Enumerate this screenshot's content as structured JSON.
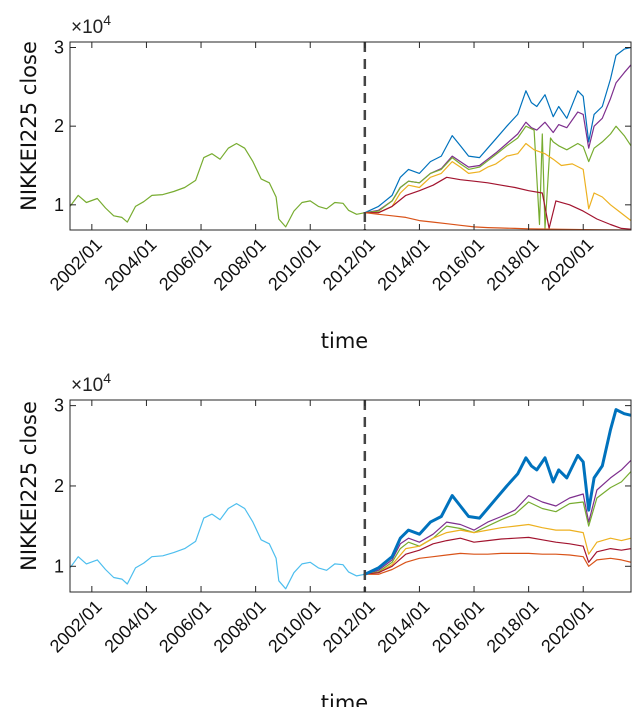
{
  "chart_data": [
    {
      "type": "line",
      "title": "",
      "xlabel": "time",
      "ylabel": "NIKKEI225 close",
      "y_exponent_label": "×10",
      "y_exponent_power": "4",
      "xlim": [
        2001.2,
        2021.75
      ],
      "ylim": [
        0.68,
        3.07
      ],
      "y_scale_note": "values in units of 10^4",
      "x_ticks": [
        2002,
        2004,
        2006,
        2008,
        2010,
        2012,
        2014,
        2016,
        2018,
        2020
      ],
      "x_tick_labels": [
        "2002/01",
        "2004/01",
        "2006/01",
        "2008/01",
        "2010/01",
        "2012/01",
        "2014/01",
        "2016/01",
        "2018/01",
        "2020/01"
      ],
      "y_ticks": [
        1,
        2,
        3
      ],
      "y_tick_labels": [
        "1",
        "2",
        "3"
      ],
      "split_x": 2012.0,
      "grid": false,
      "history": {
        "color": "#77AC30",
        "x": [
          2001.2,
          2001.5,
          2001.8,
          2002.2,
          2002.5,
          2002.8,
          2003.1,
          2003.3,
          2003.6,
          2003.9,
          2004.2,
          2004.6,
          2005.0,
          2005.4,
          2005.8,
          2006.1,
          2006.4,
          2006.7,
          2007.0,
          2007.3,
          2007.6,
          2007.9,
          2008.2,
          2008.5,
          2008.75,
          2008.85,
          2009.1,
          2009.4,
          2009.7,
          2010.0,
          2010.3,
          2010.6,
          2010.9,
          2011.2,
          2011.4,
          2011.7,
          2012.0
        ],
        "y": [
          0.98,
          1.12,
          1.03,
          1.08,
          0.96,
          0.86,
          0.84,
          0.78,
          0.98,
          1.04,
          1.12,
          1.13,
          1.17,
          1.22,
          1.31,
          1.6,
          1.65,
          1.58,
          1.72,
          1.78,
          1.72,
          1.55,
          1.33,
          1.28,
          1.1,
          0.82,
          0.72,
          0.92,
          1.03,
          1.05,
          0.98,
          0.95,
          1.03,
          1.02,
          0.93,
          0.88,
          0.9
        ]
      },
      "series": [
        {
          "color": "#0072BD",
          "width": 1.2,
          "x": [
            2012.0,
            2012.5,
            2013.0,
            2013.3,
            2013.6,
            2014.0,
            2014.4,
            2014.8,
            2015.2,
            2015.5,
            2015.8,
            2016.2,
            2016.5,
            2016.8,
            2017.2,
            2017.6,
            2017.9,
            2018.1,
            2018.3,
            2018.6,
            2018.9,
            2019.1,
            2019.4,
            2019.8,
            2020.0,
            2020.2,
            2020.4,
            2020.7,
            2021.0,
            2021.2,
            2021.5,
            2021.75
          ],
          "y": [
            0.9,
            0.98,
            1.12,
            1.35,
            1.45,
            1.4,
            1.55,
            1.62,
            1.88,
            1.75,
            1.62,
            1.6,
            1.72,
            1.84,
            2.0,
            2.15,
            2.45,
            2.3,
            2.25,
            2.4,
            2.12,
            2.25,
            2.1,
            2.45,
            2.38,
            1.8,
            2.15,
            2.25,
            2.6,
            2.9,
            2.98,
            3.0
          ]
        },
        {
          "color": "#7E2F8E",
          "width": 1.2,
          "x": [
            2012.0,
            2012.5,
            2013.0,
            2013.3,
            2013.6,
            2014.0,
            2014.4,
            2014.8,
            2015.2,
            2015.5,
            2015.8,
            2016.2,
            2016.5,
            2016.8,
            2017.2,
            2017.6,
            2017.9,
            2018.1,
            2018.3,
            2018.6,
            2018.9,
            2019.1,
            2019.4,
            2019.8,
            2020.0,
            2020.2,
            2020.4,
            2020.7,
            2021.0,
            2021.2,
            2021.5,
            2021.75
          ],
          "y": [
            0.9,
            0.93,
            1.05,
            1.22,
            1.3,
            1.28,
            1.4,
            1.46,
            1.62,
            1.55,
            1.48,
            1.5,
            1.58,
            1.66,
            1.78,
            1.9,
            2.05,
            1.98,
            1.95,
            2.05,
            1.92,
            2.02,
            1.98,
            2.18,
            2.15,
            1.72,
            2.0,
            2.1,
            2.35,
            2.55,
            2.68,
            2.78
          ]
        },
        {
          "color": "#77AC30",
          "width": 1.2,
          "x": [
            2012.0,
            2012.5,
            2013.0,
            2013.3,
            2013.6,
            2014.0,
            2014.4,
            2014.8,
            2015.2,
            2015.5,
            2015.8,
            2016.2,
            2016.5,
            2016.8,
            2017.2,
            2017.6,
            2017.9,
            2018.2,
            2018.4,
            2018.5,
            2018.6,
            2018.8,
            2018.9,
            2019.1,
            2019.4,
            2019.8,
            2020.0,
            2020.2,
            2020.4,
            2020.7,
            2021.0,
            2021.2,
            2021.5,
            2021.75
          ],
          "y": [
            0.9,
            0.92,
            1.05,
            1.22,
            1.3,
            1.28,
            1.4,
            1.45,
            1.6,
            1.52,
            1.45,
            1.48,
            1.56,
            1.64,
            1.75,
            1.85,
            2.0,
            1.95,
            0.75,
            1.9,
            0.7,
            1.85,
            1.8,
            1.75,
            1.7,
            1.78,
            1.74,
            1.55,
            1.72,
            1.8,
            1.9,
            2.0,
            1.88,
            1.75
          ]
        },
        {
          "color": "#EDB120",
          "width": 1.2,
          "x": [
            2012.0,
            2012.5,
            2013.0,
            2013.3,
            2013.6,
            2014.0,
            2014.4,
            2014.8,
            2015.2,
            2015.5,
            2015.8,
            2016.2,
            2016.5,
            2016.8,
            2017.2,
            2017.6,
            2017.9,
            2018.2,
            2018.6,
            2018.9,
            2019.2,
            2019.6,
            2020.0,
            2020.2,
            2020.4,
            2020.7,
            2021.0,
            2021.3,
            2021.75
          ],
          "y": [
            0.9,
            0.9,
            0.98,
            1.15,
            1.25,
            1.22,
            1.35,
            1.4,
            1.55,
            1.48,
            1.4,
            1.42,
            1.48,
            1.52,
            1.62,
            1.65,
            1.78,
            1.7,
            1.65,
            1.58,
            1.5,
            1.52,
            1.45,
            0.95,
            1.15,
            1.1,
            1.0,
            0.92,
            0.8
          ]
        },
        {
          "color": "#A2142F",
          "width": 1.2,
          "x": [
            2012.0,
            2012.5,
            2013.0,
            2013.5,
            2014.0,
            2014.5,
            2015.0,
            2015.5,
            2016.0,
            2016.5,
            2017.0,
            2017.5,
            2018.0,
            2018.5,
            2018.75,
            2019.0,
            2019.5,
            2020.0,
            2020.5,
            2021.0,
            2021.4,
            2021.75
          ],
          "y": [
            0.9,
            0.9,
            0.98,
            1.12,
            1.18,
            1.25,
            1.35,
            1.32,
            1.3,
            1.28,
            1.25,
            1.22,
            1.18,
            1.15,
            0.7,
            1.05,
            1.0,
            0.92,
            0.82,
            0.75,
            0.7,
            0.69
          ]
        },
        {
          "color": "#D95319",
          "width": 1.2,
          "x": [
            2012.0,
            2012.5,
            2013.0,
            2013.5,
            2014.0,
            2014.5,
            2015.0,
            2015.5,
            2016.0,
            2016.5,
            2017.0,
            2017.5,
            2018.0,
            2019.0,
            2020.0,
            2021.0,
            2021.75
          ],
          "y": [
            0.9,
            0.88,
            0.86,
            0.84,
            0.8,
            0.78,
            0.76,
            0.74,
            0.72,
            0.71,
            0.705,
            0.7,
            0.695,
            0.69,
            0.685,
            0.682,
            0.68
          ]
        }
      ]
    },
    {
      "type": "line",
      "title": "",
      "xlabel": "time",
      "ylabel": "NIKKEI225 close",
      "y_exponent_label": "×10",
      "y_exponent_power": "4",
      "xlim": [
        2001.2,
        2021.75
      ],
      "ylim": [
        0.68,
        3.07
      ],
      "y_scale_note": "values in units of 10^4",
      "x_ticks": [
        2002,
        2004,
        2006,
        2008,
        2010,
        2012,
        2014,
        2016,
        2018,
        2020
      ],
      "x_tick_labels": [
        "2002/01",
        "2004/01",
        "2006/01",
        "2008/01",
        "2010/01",
        "2012/01",
        "2014/01",
        "2016/01",
        "2018/01",
        "2020/01"
      ],
      "y_ticks": [
        1,
        2,
        3
      ],
      "y_tick_labels": [
        "1",
        "2",
        "3"
      ],
      "split_x": 2012.0,
      "grid": false,
      "history": {
        "color": "#4DBEEE",
        "x": [
          2001.2,
          2001.5,
          2001.8,
          2002.2,
          2002.5,
          2002.8,
          2003.1,
          2003.3,
          2003.6,
          2003.9,
          2004.2,
          2004.6,
          2005.0,
          2005.4,
          2005.8,
          2006.1,
          2006.4,
          2006.7,
          2007.0,
          2007.3,
          2007.6,
          2007.9,
          2008.2,
          2008.5,
          2008.75,
          2008.85,
          2009.1,
          2009.4,
          2009.7,
          2010.0,
          2010.3,
          2010.6,
          2010.9,
          2011.2,
          2011.4,
          2011.7,
          2012.0
        ],
        "y": [
          0.98,
          1.12,
          1.03,
          1.08,
          0.96,
          0.86,
          0.84,
          0.78,
          0.98,
          1.04,
          1.12,
          1.13,
          1.17,
          1.22,
          1.31,
          1.6,
          1.65,
          1.58,
          1.72,
          1.78,
          1.72,
          1.55,
          1.33,
          1.28,
          1.1,
          0.82,
          0.72,
          0.92,
          1.03,
          1.05,
          0.98,
          0.95,
          1.03,
          1.02,
          0.93,
          0.88,
          0.9
        ]
      },
      "series": [
        {
          "color": "#0072BD",
          "width": 3,
          "x": [
            2012.0,
            2012.5,
            2013.0,
            2013.3,
            2013.6,
            2014.0,
            2014.4,
            2014.8,
            2015.2,
            2015.5,
            2015.8,
            2016.2,
            2016.5,
            2016.8,
            2017.2,
            2017.6,
            2017.9,
            2018.1,
            2018.3,
            2018.6,
            2018.9,
            2019.1,
            2019.4,
            2019.8,
            2020.0,
            2020.2,
            2020.4,
            2020.7,
            2021.0,
            2021.2,
            2021.5,
            2021.75
          ],
          "y": [
            0.9,
            0.98,
            1.12,
            1.35,
            1.45,
            1.4,
            1.55,
            1.62,
            1.88,
            1.75,
            1.62,
            1.6,
            1.72,
            1.84,
            2.0,
            2.15,
            2.35,
            2.25,
            2.2,
            2.35,
            2.05,
            2.2,
            2.1,
            2.38,
            2.3,
            1.7,
            2.1,
            2.25,
            2.7,
            2.95,
            2.9,
            2.88
          ]
        },
        {
          "color": "#7E2F8E",
          "width": 1.2,
          "x": [
            2012.0,
            2012.5,
            2013.0,
            2013.3,
            2013.6,
            2014.0,
            2014.5,
            2015.0,
            2015.5,
            2016.0,
            2016.5,
            2017.0,
            2017.5,
            2018.0,
            2018.5,
            2019.0,
            2019.5,
            2020.0,
            2020.2,
            2020.5,
            2021.0,
            2021.4,
            2021.75
          ],
          "y": [
            0.9,
            0.95,
            1.08,
            1.28,
            1.35,
            1.3,
            1.4,
            1.55,
            1.52,
            1.45,
            1.55,
            1.62,
            1.7,
            1.88,
            1.8,
            1.75,
            1.85,
            1.9,
            1.55,
            1.95,
            2.1,
            2.2,
            2.32
          ]
        },
        {
          "color": "#77AC30",
          "width": 1.2,
          "x": [
            2012.0,
            2012.5,
            2013.0,
            2013.3,
            2013.6,
            2014.0,
            2014.5,
            2015.0,
            2015.5,
            2016.0,
            2016.5,
            2017.0,
            2017.5,
            2018.0,
            2018.5,
            2019.0,
            2019.5,
            2020.0,
            2020.2,
            2020.5,
            2021.0,
            2021.4,
            2021.75
          ],
          "y": [
            0.9,
            0.93,
            1.05,
            1.22,
            1.3,
            1.25,
            1.35,
            1.5,
            1.47,
            1.42,
            1.5,
            1.58,
            1.65,
            1.8,
            1.72,
            1.68,
            1.78,
            1.8,
            1.5,
            1.85,
            1.98,
            2.05,
            2.18
          ]
        },
        {
          "color": "#EDB120",
          "width": 1.2,
          "x": [
            2012.0,
            2012.5,
            2013.0,
            2013.5,
            2014.0,
            2014.5,
            2015.0,
            2015.5,
            2016.0,
            2016.5,
            2017.0,
            2017.5,
            2018.0,
            2018.5,
            2019.0,
            2019.5,
            2020.0,
            2020.2,
            2020.5,
            2021.0,
            2021.4,
            2021.75
          ],
          "y": [
            0.9,
            0.92,
            1.02,
            1.22,
            1.25,
            1.35,
            1.42,
            1.45,
            1.42,
            1.45,
            1.48,
            1.5,
            1.52,
            1.48,
            1.45,
            1.45,
            1.42,
            1.15,
            1.3,
            1.35,
            1.32,
            1.35
          ]
        },
        {
          "color": "#A2142F",
          "width": 1.2,
          "x": [
            2012.0,
            2012.5,
            2013.0,
            2013.5,
            2014.0,
            2014.5,
            2015.0,
            2015.5,
            2016.0,
            2016.5,
            2017.0,
            2017.5,
            2018.0,
            2018.5,
            2019.0,
            2019.5,
            2020.0,
            2020.2,
            2020.5,
            2021.0,
            2021.4,
            2021.75
          ],
          "y": [
            0.9,
            0.92,
            1.0,
            1.15,
            1.2,
            1.28,
            1.32,
            1.35,
            1.3,
            1.32,
            1.34,
            1.35,
            1.36,
            1.33,
            1.3,
            1.28,
            1.25,
            1.05,
            1.18,
            1.22,
            1.2,
            1.22
          ]
        },
        {
          "color": "#D95319",
          "width": 1.2,
          "x": [
            2012.0,
            2012.5,
            2013.0,
            2013.5,
            2014.0,
            2014.5,
            2015.0,
            2015.5,
            2016.0,
            2016.5,
            2017.0,
            2017.5,
            2018.0,
            2018.5,
            2019.0,
            2019.5,
            2020.0,
            2020.2,
            2020.5,
            2021.0,
            2021.4,
            2021.75
          ],
          "y": [
            0.9,
            0.9,
            0.96,
            1.05,
            1.1,
            1.12,
            1.14,
            1.16,
            1.15,
            1.15,
            1.16,
            1.16,
            1.16,
            1.15,
            1.15,
            1.14,
            1.12,
            1.0,
            1.08,
            1.1,
            1.08,
            1.05
          ]
        }
      ]
    }
  ]
}
